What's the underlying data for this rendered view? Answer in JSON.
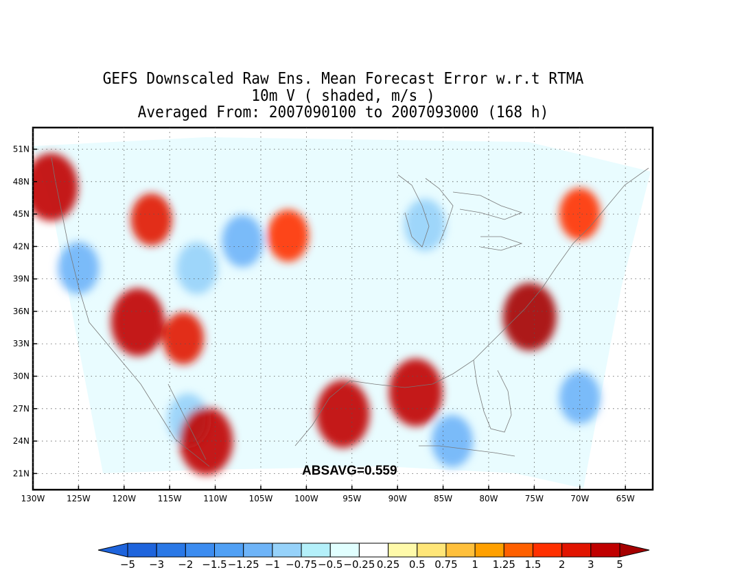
{
  "title": {
    "line1": "GEFS Downscaled Raw Ens. Mean Forecast Error w.r.t RTMA",
    "line2": "10m V ( shaded, m/s )",
    "line3": "Averaged From: 2007090100 to 2007093000 (168 h)"
  },
  "absavg_label": "ABSAVG=0.559",
  "map": {
    "lon_range": [
      -130,
      -62
    ],
    "lat_range": [
      19.5,
      53
    ],
    "lat_ticks": [
      "51N",
      "48N",
      "45N",
      "42N",
      "39N",
      "36N",
      "33N",
      "30N",
      "27N",
      "24N",
      "21N"
    ],
    "lat_values": [
      51,
      48,
      45,
      42,
      39,
      36,
      33,
      30,
      27,
      24,
      21
    ],
    "lon_ticks": [
      "130W",
      "125W",
      "120W",
      "115W",
      "110W",
      "105W",
      "100W",
      "95W",
      "90W",
      "85W",
      "80W",
      "75W",
      "70W",
      "65W"
    ],
    "lon_values": [
      -130,
      -125,
      -120,
      -115,
      -110,
      -105,
      -100,
      -95,
      -90,
      -85,
      -80,
      -75,
      -70,
      -65
    ],
    "gridlines": "dotted",
    "features": [
      {
        "name": "Pacific NW coast positive error",
        "lon": -128,
        "lat": 47.5,
        "value": 2.5
      },
      {
        "name": "Pacific coast negative error",
        "lon": -125,
        "lat": 40,
        "value": -1.5
      },
      {
        "name": "Southern California positive error",
        "lon": -118.5,
        "lat": 35,
        "value": 2.5
      },
      {
        "name": "Arizona positive error",
        "lon": -113.5,
        "lat": 33.5,
        "value": 1.5
      },
      {
        "name": "Great Basin negative error",
        "lon": -112,
        "lat": 40,
        "value": -1.25
      },
      {
        "name": "Wyoming negative error",
        "lon": -107,
        "lat": 42.5,
        "value": -1.5
      },
      {
        "name": "Nebraska positive error",
        "lon": -102,
        "lat": 43,
        "value": 1.25
      },
      {
        "name": "Idaho positive error",
        "lon": -117,
        "lat": 44.5,
        "value": 1.5
      },
      {
        "name": "Texas coast positive error",
        "lon": -96,
        "lat": 26.5,
        "value": 2.5
      },
      {
        "name": "Gulf coast positive error",
        "lon": -88,
        "lat": 28.5,
        "value": 2
      },
      {
        "name": "Mid-Atlantic positive error",
        "lon": -75.5,
        "lat": 35.5,
        "value": 3
      },
      {
        "name": "New England positive error",
        "lon": -70,
        "lat": 45,
        "value": 1.25
      },
      {
        "name": "Lake Michigan negative error",
        "lon": -87,
        "lat": 44,
        "value": -1.25
      },
      {
        "name": "Gulf of Mexico negative error",
        "lon": -84,
        "lat": 24,
        "value": -1.5
      },
      {
        "name": "Atlantic offshore negative error",
        "lon": -70,
        "lat": 28,
        "value": -1.5
      },
      {
        "name": "Mexico Pacific negative error",
        "lon": -113,
        "lat": 26,
        "value": -1.25
      },
      {
        "name": "Baja positive error",
        "lon": -111,
        "lat": 24,
        "value": 2
      }
    ]
  },
  "colorbar": {
    "labels": [
      "−5",
      "−3",
      "−2",
      "−1.5",
      "−1.25",
      "−1",
      "−0.75",
      "−0.5",
      "−0.25",
      "0.25",
      "0.5",
      "0.75",
      "1",
      "1.25",
      "1.5",
      "2",
      "3",
      "5"
    ],
    "colors": [
      "#1e64dc",
      "#2a78e6",
      "#3c8cf0",
      "#50a0f5",
      "#6eb4f8",
      "#96d2fa",
      "#b4f0fa",
      "#e1ffff",
      "#ffffff",
      "#fffaaa",
      "#ffe678",
      "#ffc03c",
      "#ffa000",
      "#ff6000",
      "#ff3000",
      "#e11400",
      "#c00000",
      "#a50000"
    ]
  }
}
